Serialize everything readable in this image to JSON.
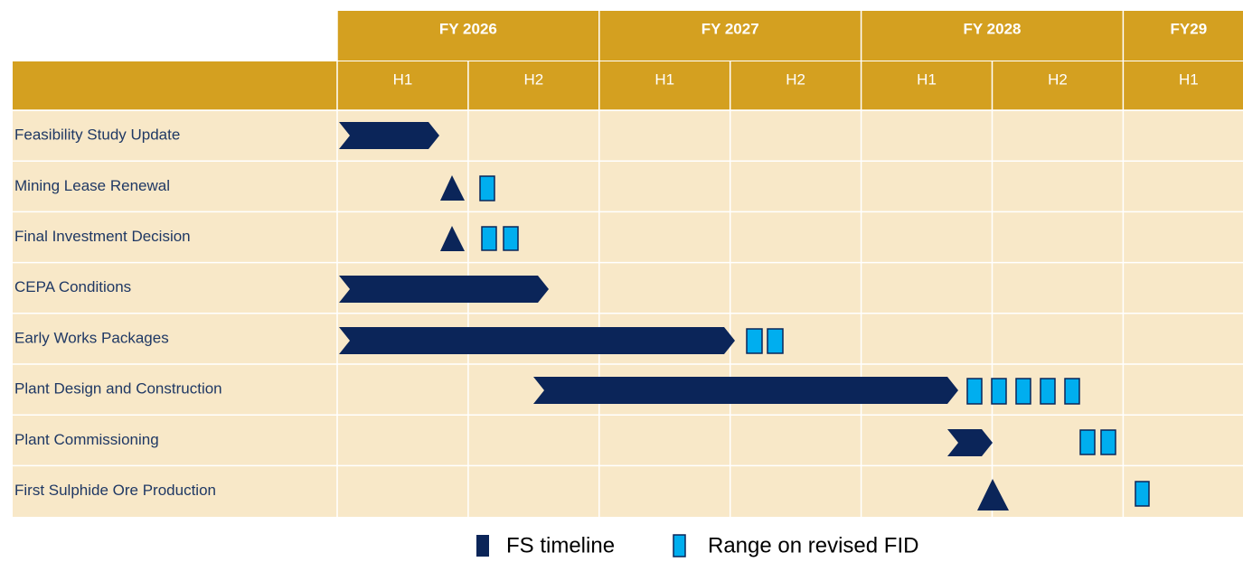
{
  "header": {
    "years": [
      "FY 2026",
      "FY 2027",
      "FY 2028",
      "FY29"
    ],
    "halves": [
      "H1",
      "H2",
      "H1",
      "H2",
      "H1",
      "H2",
      "H1"
    ]
  },
  "rows": [
    "Feasibility Study Update",
    "Mining Lease Renewal",
    "Final Investment Decision",
    "CEPA Conditions",
    "Early Works Packages",
    "Plant Design and Construction",
    "Plant Commissioning",
    "First Sulphide Ore Production"
  ],
  "legend": [
    "FS timeline",
    "Range on revised FID"
  ]
}
